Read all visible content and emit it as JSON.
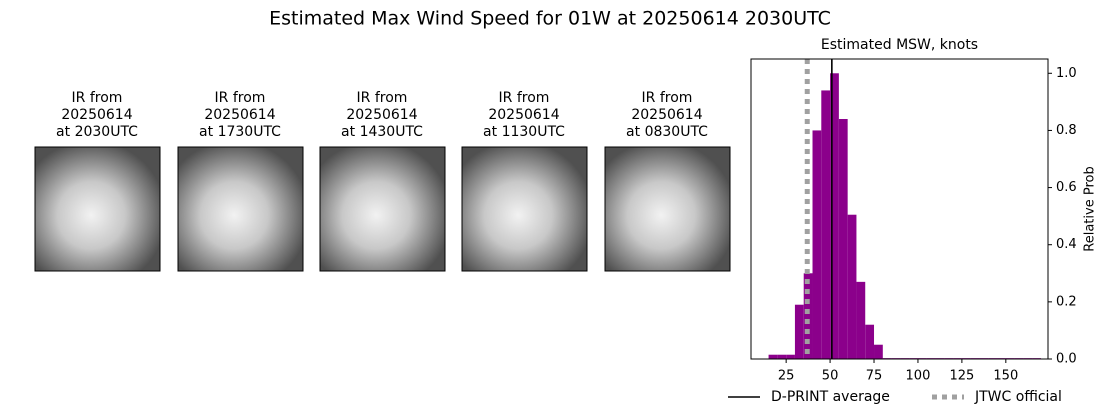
{
  "title": "Estimated Max Wind Speed for 01W at 20250614 2030UTC",
  "panels": [
    {
      "lines": [
        "IR from",
        "20250614",
        "at 2030UTC"
      ]
    },
    {
      "lines": [
        "IR from",
        "20250614",
        "at 1730UTC"
      ]
    },
    {
      "lines": [
        "IR from",
        "20250614",
        "at 1430UTC"
      ]
    },
    {
      "lines": [
        "IR from",
        "20250614",
        "at 1130UTC"
      ]
    },
    {
      "lines": [
        "IR from",
        "20250614",
        "at 0830UTC"
      ]
    }
  ],
  "chart_data": {
    "type": "histogram",
    "title": "Estimated MSW, knots",
    "ylabel": "Relative Prob",
    "bins": [
      15,
      20,
      25,
      30,
      35,
      40,
      45,
      50,
      55,
      60,
      65,
      70,
      75,
      80,
      85,
      90,
      95,
      100,
      105,
      110,
      115,
      120,
      125,
      130,
      135,
      140,
      145,
      150,
      155,
      160,
      165,
      170
    ],
    "values": [
      0.015,
      0.015,
      0.015,
      0.19,
      0.3,
      0.8,
      0.94,
      1.0,
      0.84,
      0.505,
      0.27,
      0.12,
      0.05,
      0.003,
      0.003,
      0.003,
      0.003,
      0.003,
      0.003,
      0.003,
      0.003,
      0.003,
      0.003,
      0.003,
      0.003,
      0.003,
      0.003,
      0.003,
      0.003,
      0.003,
      0.003
    ],
    "color": "#8b008b",
    "xlim": [
      5,
      174
    ],
    "xticks": [
      25,
      50,
      75,
      100,
      125,
      150
    ],
    "ylim": [
      0,
      1.05
    ],
    "yticks": [
      {
        "value": 0,
        "label": "0.0"
      },
      {
        "value": 0.2,
        "label": "0.2"
      },
      {
        "value": 0.4,
        "label": "0.4"
      },
      {
        "value": 0.6,
        "label": "0.6"
      },
      {
        "value": 0.8,
        "label": "0.8"
      },
      {
        "value": 1,
        "label": "1.0"
      }
    ],
    "lines": [
      {
        "name": "D-PRINT average",
        "value": 51,
        "color": "#000000",
        "style": "solid"
      },
      {
        "name": "JTWC official",
        "value": 37,
        "color": "#a0a0a0",
        "style": "dotted"
      }
    ]
  }
}
